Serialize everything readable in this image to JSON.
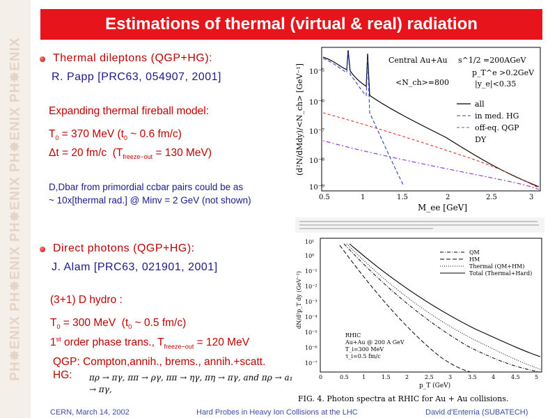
{
  "sidebar": {
    "watermark": "PH✸ENIX  PH✸ENIX  PH✸ENIX  PH✸ENIX  PH✸ENIX"
  },
  "title": "Estimations of thermal (virtual & real) radiation",
  "section1": {
    "heading": "Thermal dileptons (QGP+HG):",
    "ref": "R. Papp [PRC63, 054907, 2001]",
    "model": "Expanding thermal fireball model:",
    "line1": "T₀ = 370 MeV (t₀ ~ 0.6 fm/c)",
    "line2": "Δt = 20 fm/c  (T_freeze-out = 130 MeV)",
    "note1": "D,Dbar from primordial ccbar pairs could be as",
    "note2": "~ 10x[thermal rad.] @ Minv = 2 GeV (not shown)"
  },
  "section2": {
    "heading": "Direct photons (QGP+HG):",
    "ref": "J. Alam [PRC63, 021901, 2001]",
    "model": "(3+1) D hydro :",
    "line1": "T₀ = 300 MeV  (t₀ ~ 0.5 fm/c)",
    "line2": "1st order phase trans., T_freeze-out = 120 MeV",
    "line3": "QGP: Compton,annih., brems., annih.+scatt.",
    "line4": "HG:",
    "reactions": "πρ → πγ, ππ → ργ, ππ → ηγ,  πη → πγ, and πρ → a₁ → πγ,"
  },
  "figure1": {
    "label1": "Central Au+Au",
    "label2": "s^1/2 =200AGeV",
    "label3": "<N_ch>=800",
    "label4": "p_T^e >0.2GeV",
    "label5": "|y_e|<0.35",
    "xlabel": "M_ee [GeV]",
    "ylabel": "(d²N/dMdy)/<N_ch> [GeV⁻¹]",
    "legend": [
      "all",
      "in med. HG",
      "off-eq. QGP",
      "DY"
    ],
    "xticks": [
      "0.5",
      "1",
      "1.5",
      "2",
      "2.5",
      "3"
    ],
    "yticks": [
      "10⁻⁵",
      "10⁻⁶",
      "10⁻⁷",
      "10⁻⁸",
      "10⁻⁹"
    ],
    "colors": {
      "all": "#000000",
      "hg": "#2b3fd6",
      "qgp": "#e0322e",
      "dy": "#8a2be2"
    }
  },
  "figure2": {
    "legend": [
      "QM",
      "HM",
      "Thermal (QM+HM)",
      "Total (Thermal+Hard)"
    ],
    "label1": "RHIC",
    "label2": "Au+Au @ 200 A GeV",
    "label3": "T_i=300 MeV",
    "label4": "τ_i=0.5 fm/c",
    "xlabel": "p_T (GeV)",
    "ylabel": "dN/d²p_T dy (GeV⁻²)",
    "xticks": [
      "0",
      "0.5",
      "1",
      "1.5",
      "2",
      "2.5",
      "3",
      "3.5",
      "4",
      "4.5",
      "5"
    ],
    "yticks": [
      "10¹",
      "10⁰",
      "10⁻¹",
      "10⁻²",
      "10⁻³",
      "10⁻⁴",
      "10⁻⁵",
      "10⁻⁶",
      "10⁻⁷"
    ],
    "caption": "FIG. 4.   Photon spectra at RHIC for Au + Au collisions."
  },
  "footer": {
    "left": "CERN, March 14, 2002",
    "center": "Hard Probes in Heavy Ion Collisions at the LHC",
    "right": "David d'Enterria (SUBATECH)"
  }
}
